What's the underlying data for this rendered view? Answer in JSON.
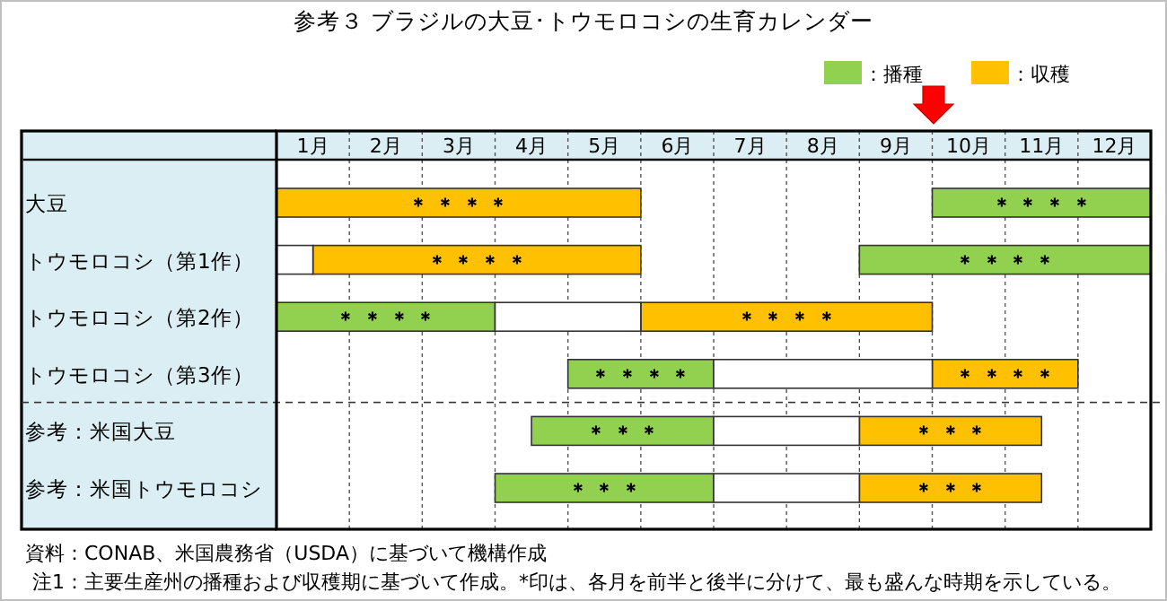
{
  "chart_data": {
    "type": "bar",
    "orientation": "horizontal",
    "title": "参考３ ブラジルの大豆･トウモロコシの生育カレンダー",
    "categories": [
      "大豆",
      "トウモロコシ（第1作）",
      "トウモロコシ（第2作）",
      "トウモロコシ（第3作）",
      "参考：米国大豆",
      "参考：米国トウモロコシ"
    ],
    "series": [
      {
        "name": "：播種",
        "color": "#92d050",
        "base": [
          9,
          8,
          0,
          4,
          3.5,
          3
        ],
        "values": [
          3,
          4,
          3,
          2,
          2.5,
          3
        ],
        "value_labels": [
          "＊ ＊ ＊ ＊",
          "＊ ＊ ＊ ＊",
          "＊ ＊ ＊ ＊",
          "＊ ＊ ＊ ＊",
          "＊ ＊ ＊",
          "＊ ＊ ＊"
        ]
      },
      {
        "name": "：収穫",
        "color": "#ffc000",
        "base": [
          0,
          0.5,
          5,
          9,
          8,
          8
        ],
        "values": [
          5,
          4.5,
          4,
          2,
          2.5,
          2.5
        ],
        "value_labels": [
          "＊ ＊ ＊ ＊",
          "＊ ＊ ＊ ＊",
          "＊ ＊ ＊ ＊",
          "＊ ＊ ＊ ＊",
          "＊ ＊ ＊",
          "＊ ＊ ＊"
        ]
      },
      {
        "color": "#ffffff",
        "base": [
          null,
          0,
          3,
          6,
          6,
          6
        ],
        "values": [
          null,
          0.5,
          2,
          3,
          2,
          2
        ]
      }
    ],
    "xlim": [
      0,
      12
    ],
    "xticks": [
      {
        "value": 0,
        "label": null
      },
      {
        "value": 0.5,
        "label": "1月"
      },
      {
        "value": 1,
        "label": null
      },
      {
        "value": 1.5,
        "label": "2月"
      },
      {
        "value": 2,
        "label": null
      },
      {
        "value": 2.5,
        "label": "3月"
      },
      {
        "value": 3,
        "label": null
      },
      {
        "value": 3.5,
        "label": "4月"
      },
      {
        "value": 4,
        "label": null
      },
      {
        "value": 4.5,
        "label": "5月"
      },
      {
        "value": 5,
        "label": null
      },
      {
        "value": 5.5,
        "label": "6月"
      },
      {
        "value": 6,
        "label": null
      },
      {
        "value": 6.5,
        "label": "7月"
      },
      {
        "value": 7,
        "label": null
      },
      {
        "value": 7.5,
        "label": "8月"
      },
      {
        "value": 8,
        "label": null
      },
      {
        "value": 8.5,
        "label": "9月"
      },
      {
        "value": 9,
        "label": null
      },
      {
        "value": 9.5,
        "label": "10月"
      },
      {
        "value": 10,
        "label": null
      },
      {
        "value": 10.5,
        "label": "11月"
      },
      {
        "value": 11,
        "label": null
      },
      {
        "value": 11.5,
        "label": "12月"
      },
      {
        "value": 12,
        "label": null
      }
    ],
    "grid": "x",
    "legend": "top right",
    "annotations": [
      "資料：CONAB、米国農務省（USDA）に基づいて機構作成",
      "注1：主要生産州の播種および収穫期に基づいて作成。*印は、各月を前半と後半に分けて、最も盛んな時期を示している。"
    ]
  }
}
